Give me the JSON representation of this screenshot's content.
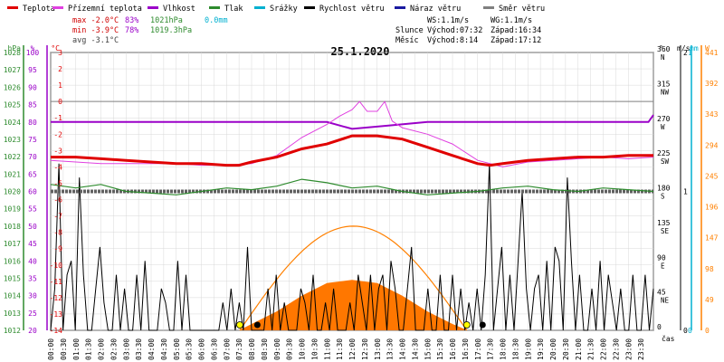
{
  "legend": [
    {
      "label": "Teplota",
      "color": "#e00000"
    },
    {
      "label": "Přízemní teplota",
      "color": "#e040e0"
    },
    {
      "label": "Vlhkost",
      "color": "#9a00c8"
    },
    {
      "label": "Tlak",
      "color": "#2e8b2e"
    },
    {
      "label": "Srážky",
      "color": "#00b0d0"
    },
    {
      "label": "Rychlost větru",
      "color": "#000000"
    },
    {
      "label": "Náraz větru",
      "color": "#1a1aa0"
    },
    {
      "label": "Směr větru",
      "color": "#808080"
    }
  ],
  "stats": {
    "max_temp": "max -2.0°C",
    "max_hum": "83%",
    "max_press": "1021hPa",
    "max_rain": "0.0mm",
    "min_temp": "min -3.9°C",
    "min_hum": "78%",
    "min_press": "1019.3hPa",
    "avg_temp": "avg -3.1°C"
  },
  "wind_stats": {
    "ws": "WS:1.1m/s",
    "wg": "WG:1.1m/s"
  },
  "sun": {
    "label": "Slunce",
    "rise": "Východ:07:32",
    "set": "Západ:16:34"
  },
  "moon": {
    "label": "Měsíc",
    "rise": "Východ:8:14",
    "set": "Západ:17:12"
  },
  "date": "25.1.2020",
  "axis_units": {
    "hpa": "hPa",
    "pct": "%",
    "degc": "°C",
    "deg": "°",
    "ms": "m/s",
    "mm": "mm",
    "w": "W",
    "time": "čas"
  },
  "colors": {
    "temp": "#e00000",
    "ground": "#e040e0",
    "humidity": "#9a00c8",
    "pressure": "#2e8b2e",
    "rain": "#00b0d0",
    "wind": "#000000",
    "dir": "#606060",
    "sun": "#ff8000",
    "solar": "#ff7700"
  },
  "chart_data": {
    "type": "line",
    "title": "25.1.2020",
    "x_ticks": [
      "00:00",
      "00:30",
      "01:00",
      "01:30",
      "02:00",
      "02:30",
      "03:00",
      "03:30",
      "04:00",
      "04:30",
      "05:00",
      "05:30",
      "06:00",
      "06:30",
      "07:00",
      "07:30",
      "08:00",
      "08:30",
      "09:00",
      "09:30",
      "10:00",
      "10:30",
      "11:00",
      "11:30",
      "12:00",
      "12:30",
      "13:00",
      "13:30",
      "14:00",
      "14:30",
      "15:00",
      "15:30",
      "16:00",
      "16:30",
      "17:00",
      "17:30",
      "18:00",
      "18:30",
      "19:00",
      "19:30",
      "20:00",
      "20:30",
      "21:00",
      "21:30",
      "22:00",
      "22:30",
      "23:00",
      "23:30"
    ],
    "axes": {
      "pressure_hpa": {
        "ticks": [
          "1028",
          "1027",
          "1026",
          "1025",
          "1024",
          "1023",
          "1022",
          "1021",
          "1020",
          "1019",
          "1018",
          "1017",
          "1016",
          "1015",
          "1014",
          "1013",
          "1012"
        ],
        "ylim": [
          1012,
          1028
        ]
      },
      "humidity_pct": {
        "ticks": [
          "100",
          "95",
          "90",
          "85",
          "80",
          "75",
          "70",
          "65",
          "60",
          "55",
          "50",
          "45",
          "40",
          "35",
          "30",
          "25",
          "20"
        ],
        "ylim": [
          20,
          100
        ]
      },
      "temp_c": {
        "ticks": [
          "3",
          "2",
          "1",
          "0",
          "-1",
          "-2",
          "-3",
          "-4",
          "-5",
          "-6",
          "-7",
          "-8",
          "-9",
          "-10",
          "-11",
          "-12",
          "-13",
          "-14"
        ],
        "ylim": [
          -14,
          3
        ]
      },
      "wind_dir_deg": {
        "ticks": [
          "360",
          "315",
          "270",
          "225",
          "180",
          "135",
          "90",
          "45",
          "0"
        ],
        "letters": [
          "N",
          "NW",
          "W",
          "SW",
          "S",
          "SE",
          "E",
          "NE",
          ""
        ],
        "ylim": [
          0,
          360
        ]
      },
      "wind_ms": {
        "ticks": [
          "2",
          "1",
          "0"
        ],
        "ylim": [
          0,
          2
        ]
      },
      "rain_mm": {
        "ticks": [
          "1",
          "0"
        ],
        "ylim": [
          0,
          1
        ]
      },
      "solar_w": {
        "ticks": [
          "441",
          "392",
          "343",
          "294",
          "245",
          "196",
          "147",
          "98",
          "49",
          "0"
        ],
        "ylim": [
          0,
          441
        ]
      }
    },
    "series": [
      {
        "name": "Teplota",
        "axis": "temp_c",
        "x": [
          0,
          1,
          2,
          3,
          4,
          5,
          6,
          7,
          7.5,
          8,
          9,
          10,
          11,
          12,
          13,
          14,
          15,
          16,
          17,
          17.5,
          18,
          19,
          20,
          21,
          22,
          23,
          24
        ],
        "values": [
          -3.4,
          -3.4,
          -3.5,
          -3.6,
          -3.7,
          -3.8,
          -3.8,
          -3.9,
          -3.9,
          -3.7,
          -3.4,
          -2.9,
          -2.6,
          -2.1,
          -2.1,
          -2.3,
          -2.8,
          -3.3,
          -3.8,
          -3.9,
          -3.8,
          -3.6,
          -3.5,
          -3.4,
          -3.4,
          -3.3,
          -3.3
        ]
      },
      {
        "name": "Přízemní teplota",
        "axis": "temp_c",
        "x": [
          0,
          1,
          2,
          3,
          4,
          5,
          6,
          7,
          8,
          9,
          10,
          11,
          11.5,
          12,
          12.3,
          12.6,
          13,
          13.3,
          13.6,
          14,
          15,
          16,
          17,
          18,
          19,
          20,
          21,
          22,
          23,
          24
        ],
        "values": [
          -3.6,
          -3.7,
          -3.8,
          -3.8,
          -3.8,
          -3.8,
          -3.9,
          -3.9,
          -3.8,
          -3.3,
          -2.2,
          -1.4,
          -0.9,
          -0.5,
          0.0,
          -0.6,
          -0.6,
          0.0,
          -1.2,
          -1.6,
          -2.0,
          -2.6,
          -3.6,
          -4.0,
          -3.7,
          -3.6,
          -3.5,
          -3.4,
          -3.5,
          -3.4
        ]
      },
      {
        "name": "Vlhkost",
        "axis": "humidity_pct",
        "x": [
          0,
          11,
          12,
          13.5,
          15,
          16.5,
          23.8,
          24
        ],
        "values": [
          80,
          80,
          78,
          79,
          80,
          80,
          80,
          82
        ]
      },
      {
        "name": "Tlak",
        "axis": "pressure_hpa",
        "x": [
          0,
          1,
          2,
          3,
          4,
          5,
          6,
          7,
          8,
          9,
          10,
          11,
          12,
          13,
          14,
          15,
          16,
          17,
          18,
          19,
          20,
          21,
          22,
          23,
          24
        ],
        "values": [
          1020.4,
          1020.2,
          1020.4,
          1020.0,
          1019.9,
          1019.8,
          1020.0,
          1020.2,
          1020.1,
          1020.3,
          1020.7,
          1020.5,
          1020.2,
          1020.3,
          1020.0,
          1019.8,
          1019.9,
          1020.0,
          1020.2,
          1020.3,
          1020.1,
          1020.0,
          1020.2,
          1020.1,
          1020.0
        ]
      },
      {
        "name": "Směr větru",
        "axis": "wind_dir_deg",
        "x": [
          0,
          24
        ],
        "values": [
          180,
          180
        ]
      },
      {
        "name": "Rychlost větru",
        "axis": "wind_ms",
        "values": [
          0,
          0.3,
          1.2,
          0,
          0.4,
          0.5,
          0,
          1.1,
          0.4,
          0,
          0,
          0.3,
          0.6,
          0.2,
          0,
          0,
          0.4,
          0,
          0.3,
          0,
          0,
          0.4,
          0,
          0.5,
          0,
          0,
          0,
          0.3,
          0.2,
          0,
          0,
          0.5,
          0,
          0.4,
          0,
          0,
          0,
          0,
          0,
          0,
          0,
          0,
          0.2,
          0,
          0.3,
          0,
          0.2,
          0,
          0.6,
          0,
          0,
          0,
          0,
          0.3,
          0,
          0.4,
          0,
          0.2,
          0,
          0,
          0,
          0.3,
          0.2,
          0,
          0.4,
          0,
          0,
          0.2,
          0,
          0.3,
          0,
          0,
          0,
          0.2,
          0,
          0.4,
          0.2,
          0,
          0.4,
          0,
          0.3,
          0.4,
          0,
          0.5,
          0.3,
          0,
          0,
          0.3,
          0.6,
          0,
          0,
          0,
          0.3,
          0,
          0,
          0.4,
          0,
          0,
          0.4,
          0,
          0.3,
          0,
          0.2,
          0,
          0.3,
          0,
          0.4,
          1.2,
          0,
          0.3,
          0.6,
          0,
          0.4,
          0,
          0.5,
          1.0,
          0.3,
          0,
          0.3,
          0.4,
          0,
          0.5,
          0,
          0.6,
          0.5,
          0,
          1.1,
          0.5,
          0,
          0.4,
          0,
          0,
          0.3,
          0,
          0.5,
          0,
          0.4,
          0.2,
          0,
          0.3,
          0,
          0,
          0.4,
          0,
          0,
          0.4,
          0,
          0.3
        ]
      },
      {
        "name": "Solar",
        "axis": "solar_w",
        "x": [
          7.5,
          8,
          9,
          10,
          11,
          12,
          13,
          14,
          15,
          16,
          16.6
        ],
        "values": [
          0,
          10,
          30,
          55,
          75,
          80,
          75,
          55,
          30,
          10,
          0
        ]
      }
    ],
    "sun_curve": {
      "rise": 7.53,
      "set": 16.57,
      "peak_deg": 135
    },
    "grid": true
  }
}
